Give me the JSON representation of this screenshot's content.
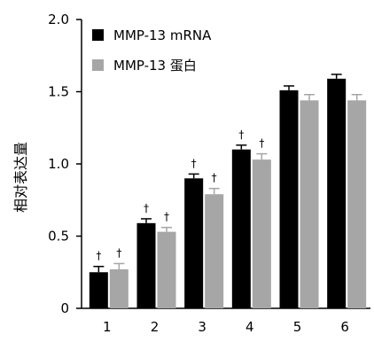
{
  "chart_data": {
    "type": "bar",
    "categories": [
      "1",
      "2",
      "3",
      "4",
      "5",
      "6"
    ],
    "ylabel": "相对表达量",
    "xlabel": "",
    "ylim": [
      0,
      2.0
    ],
    "yticks": [
      "0",
      "0.5",
      "1.0",
      "1.5",
      "2.0"
    ],
    "ytick_values": [
      0,
      0.5,
      1.0,
      1.5,
      2.0
    ],
    "grid": false,
    "legend_position": "top-left",
    "significance_marker": "†",
    "series": [
      {
        "name": "MMP-13 mRNA",
        "color": "#000000",
        "values": [
          0.25,
          0.59,
          0.9,
          1.1,
          1.51,
          1.59
        ],
        "errors": [
          0.04,
          0.03,
          0.03,
          0.03,
          0.03,
          0.03
        ],
        "significant": [
          true,
          true,
          true,
          true,
          false,
          false
        ]
      },
      {
        "name": "MMP-13 蛋白",
        "color": "#a6a6a6",
        "values": [
          0.27,
          0.53,
          0.79,
          1.03,
          1.44,
          1.44
        ],
        "errors": [
          0.04,
          0.03,
          0.04,
          0.04,
          0.04,
          0.04
        ],
        "significant": [
          true,
          true,
          true,
          true,
          false,
          false
        ]
      }
    ]
  }
}
